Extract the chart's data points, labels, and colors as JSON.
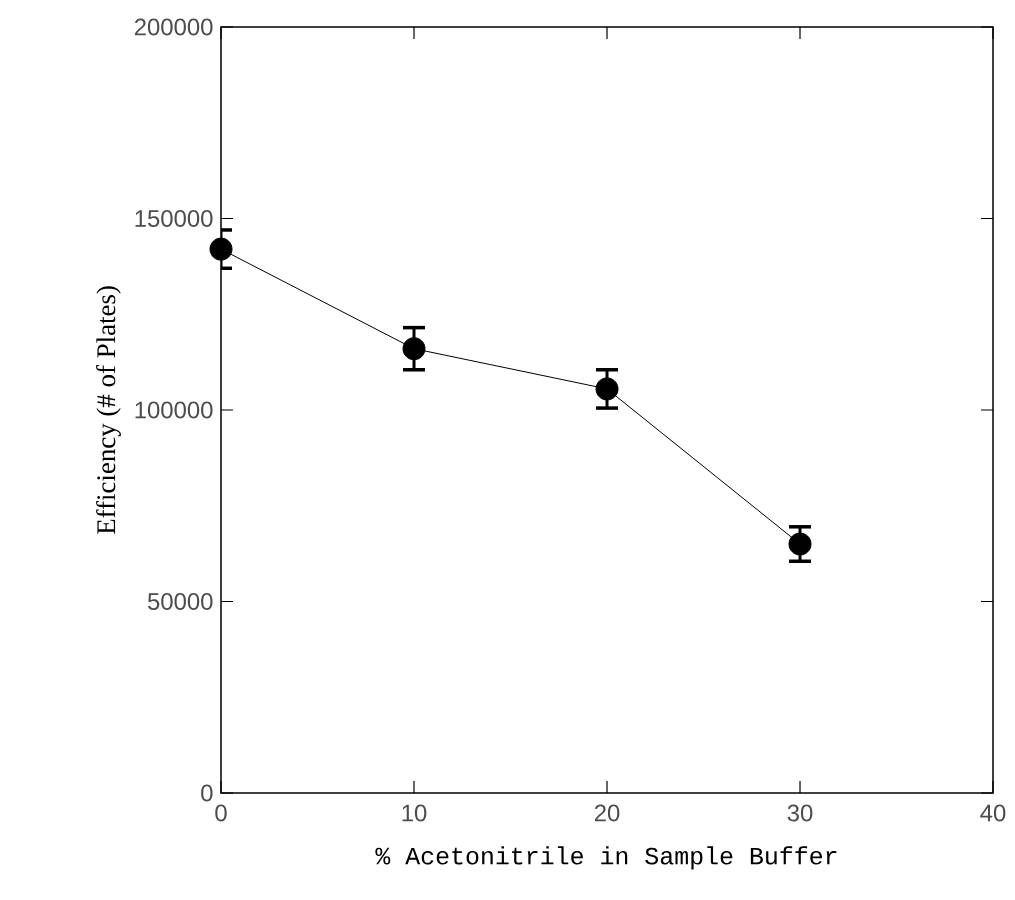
{
  "chart_data": {
    "type": "line",
    "xlabel": "% Acetonitrile in Sample Buffer",
    "ylabel": "Efficiency (# of Plates)",
    "x": [
      0,
      10,
      20,
      30
    ],
    "series": [
      {
        "color": "#000000",
        "values": [
          142000,
          116000,
          105500,
          65000
        ],
        "errors": [
          5000,
          5500,
          5000,
          4500
        ]
      }
    ],
    "xlim": [
      0,
      40
    ],
    "xticks": [
      0,
      10,
      20,
      30,
      40
    ],
    "ylim": [
      0,
      200000
    ],
    "yticks": [
      0,
      50000,
      100000,
      150000,
      200000
    ],
    "marker": "circle",
    "line_style": "solid"
  }
}
